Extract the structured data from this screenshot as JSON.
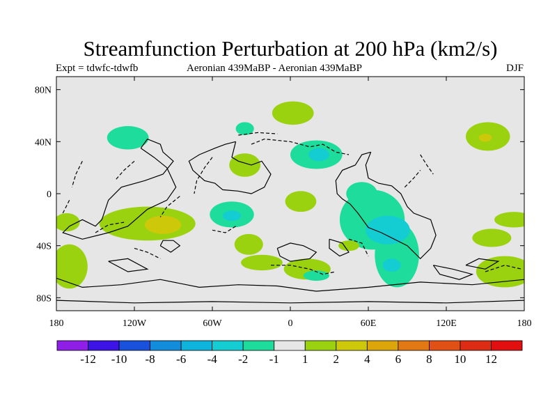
{
  "title": "Streamfunction Perturbation at 200 hPa (km2/s)",
  "subtitle_left": "Expt = tdwfc-tdwfb",
  "subtitle_center": "Aeronian 439MaBP - Aeronian 439MaBP",
  "subtitle_right": "DJF",
  "map": {
    "projection": "cylindrical-equidistant",
    "lon_range": [
      -180,
      180
    ],
    "lat_range": [
      -90,
      90
    ],
    "background_color": "#e6e6e6",
    "x_ticks": [
      {
        "lon": -180,
        "label": "180"
      },
      {
        "lon": -120,
        "label": "120W"
      },
      {
        "lon": -60,
        "label": "60W"
      },
      {
        "lon": 0,
        "label": "0"
      },
      {
        "lon": 60,
        "label": "60E"
      },
      {
        "lon": 120,
        "label": "120E"
      },
      {
        "lon": 180,
        "label": "180"
      }
    ],
    "y_ticks": [
      {
        "lat": 80,
        "label": "80N"
      },
      {
        "lat": 40,
        "label": "40N"
      },
      {
        "lat": 0,
        "label": "0"
      },
      {
        "lat": -40,
        "label": "40S"
      },
      {
        "lat": -80,
        "label": "80S"
      }
    ]
  },
  "colorbar": {
    "colors": [
      "#8f1ee6",
      "#3c14e6",
      "#1950dc",
      "#148cdc",
      "#0fb4dc",
      "#14cdd2",
      "#1edc9b",
      "#e6e6e6",
      "#9bd20f",
      "#cdc80a",
      "#dca50a",
      "#e17814",
      "#e15014",
      "#dc2d14",
      "#e10f0f"
    ],
    "labels": [
      "-12",
      "-10",
      "-8",
      "-6",
      "-4",
      "-2",
      "-1",
      "1",
      "2",
      "4",
      "6",
      "8",
      "10",
      "12"
    ]
  },
  "contours": [
    {
      "level": "2",
      "color": "#9bd20f",
      "lon": 2,
      "lat": 62,
      "rlon": 16,
      "rlat": 9
    },
    {
      "level": "-1",
      "color": "#1edc9b",
      "lon": -125,
      "lat": 43,
      "rlon": 16,
      "rlat": 9
    },
    {
      "level": "-1",
      "color": "#1edc9b",
      "lon": -35,
      "lat": 50,
      "rlon": 7,
      "rlat": 5
    },
    {
      "level": "-1",
      "color": "#1edc9b",
      "lon": 20,
      "lat": 30,
      "rlon": 20,
      "rlat": 11
    },
    {
      "level": "-2",
      "color": "#14cdd2",
      "lon": 22,
      "lat": 30,
      "rlon": 8,
      "rlat": 5
    },
    {
      "level": "2",
      "color": "#9bd20f",
      "lon": -35,
      "lat": 22,
      "rlon": 12,
      "rlat": 9
    },
    {
      "level": "2",
      "color": "#9bd20f",
      "lon": 152,
      "lat": 44,
      "rlon": 17,
      "rlat": 11
    },
    {
      "level": "4",
      "color": "#cdc80a",
      "lon": 150,
      "lat": 43,
      "rlon": 5,
      "rlat": 3
    },
    {
      "level": "2",
      "color": "#9bd20f",
      "lon": 8,
      "lat": -6,
      "rlon": 12,
      "rlat": 8
    },
    {
      "level": "-1",
      "color": "#1edc9b",
      "lon": -45,
      "lat": -16,
      "rlon": 17,
      "rlat": 10
    },
    {
      "level": "-2",
      "color": "#14cdd2",
      "lon": -45,
      "lat": -17,
      "rlon": 7,
      "rlat": 4
    },
    {
      "level": "2",
      "color": "#9bd20f",
      "lon": -110,
      "lat": -23,
      "rlon": 37,
      "rlat": 13
    },
    {
      "level": "4",
      "color": "#cdc80a",
      "lon": -98,
      "lat": -24,
      "rlon": 14,
      "rlat": 7
    },
    {
      "level": "2",
      "color": "#9bd20f",
      "lon": -172,
      "lat": -22,
      "rlon": 10,
      "rlat": 7
    },
    {
      "level": "2",
      "color": "#9bd20f",
      "lon": -170,
      "lat": -56,
      "rlon": 14,
      "rlat": 17
    },
    {
      "level": "2",
      "color": "#9bd20f",
      "lon": -32,
      "lat": -39,
      "rlon": 11,
      "rlat": 8
    },
    {
      "level": "2",
      "color": "#9bd20f",
      "lon": -22,
      "lat": -53,
      "rlon": 16,
      "rlat": 6
    },
    {
      "level": "2",
      "color": "#9bd20f",
      "lon": 13,
      "lat": -58,
      "rlon": 18,
      "rlat": 8
    },
    {
      "level": "-1",
      "color": "#1edc9b",
      "lon": 20,
      "lat": -63,
      "rlon": 10,
      "rlat": 4
    },
    {
      "level": "-1",
      "color": "#1edc9b",
      "lon": 63,
      "lat": -20,
      "rlon": 25,
      "rlat": 23
    },
    {
      "level": "-1",
      "color": "#1edc9b",
      "lon": 82,
      "lat": -47,
      "rlon": 17,
      "rlat": 25
    },
    {
      "level": "-1",
      "color": "#1edc9b",
      "lon": 55,
      "lat": 0,
      "rlon": 12,
      "rlat": 9
    },
    {
      "level": "-2",
      "color": "#14cdd2",
      "lon": 75,
      "lat": -28,
      "rlon": 17,
      "rlat": 11
    },
    {
      "level": "-2",
      "color": "#14cdd2",
      "lon": 78,
      "lat": -55,
      "rlon": 7,
      "rlat": 5
    },
    {
      "level": "2",
      "color": "#9bd20f",
      "lon": 155,
      "lat": -34,
      "rlon": 15,
      "rlat": 7
    },
    {
      "level": "2",
      "color": "#9bd20f",
      "lon": 172,
      "lat": -20,
      "rlon": 15,
      "rlat": 6
    },
    {
      "level": "2",
      "color": "#9bd20f",
      "lon": 165,
      "lat": -60,
      "rlon": 22,
      "rlat": 12
    },
    {
      "level": "2",
      "color": "#9bd20f",
      "lon": 45,
      "lat": -40,
      "rlon": 8,
      "rlat": 4
    }
  ],
  "coastlines": [
    {
      "style": "solid",
      "points": [
        [
          -42,
          40
        ],
        [
          -45,
          28
        ],
        [
          -40,
          25
        ],
        [
          -30,
          22
        ],
        [
          -22,
          25
        ],
        [
          -15,
          15
        ],
        [
          -20,
          5
        ],
        [
          -30,
          0
        ],
        [
          -40,
          2
        ],
        [
          -52,
          3
        ],
        [
          -58,
          8
        ],
        [
          -66,
          10
        ],
        [
          -75,
          18
        ],
        [
          -78,
          25
        ],
        [
          -70,
          30
        ],
        [
          -58,
          35
        ],
        [
          -50,
          38
        ],
        [
          -42,
          40
        ]
      ]
    },
    {
      "style": "solid",
      "points": [
        [
          -115,
          35
        ],
        [
          -110,
          42
        ],
        [
          -100,
          38
        ],
        [
          -98,
          32
        ],
        [
          -90,
          25
        ],
        [
          -98,
          15
        ],
        [
          -112,
          10
        ],
        [
          -130,
          5
        ],
        [
          -140,
          -5
        ],
        [
          -145,
          -20
        ],
        [
          -150,
          -25
        ],
        [
          -160,
          -20
        ],
        [
          -170,
          -25
        ],
        [
          -175,
          -30
        ],
        [
          -160,
          -35
        ],
        [
          -140,
          -30
        ],
        [
          -125,
          -25
        ],
        [
          -110,
          -12
        ],
        [
          -95,
          -5
        ],
        [
          -88,
          5
        ],
        [
          -95,
          20
        ],
        [
          -105,
          28
        ],
        [
          -115,
          35
        ]
      ]
    },
    {
      "style": "solid",
      "points": [
        [
          62,
          32
        ],
        [
          58,
          22
        ],
        [
          60,
          12
        ],
        [
          68,
          8
        ],
        [
          78,
          6
        ],
        [
          85,
          0
        ],
        [
          90,
          -10
        ],
        [
          95,
          -15
        ],
        [
          108,
          -20
        ],
        [
          112,
          -32
        ],
        [
          108,
          -42
        ],
        [
          100,
          -50
        ],
        [
          90,
          -40
        ],
        [
          80,
          -35
        ],
        [
          70,
          -30
        ],
        [
          60,
          -26
        ],
        [
          52,
          -15
        ],
        [
          46,
          -8
        ],
        [
          40,
          -4
        ],
        [
          36,
          0
        ],
        [
          35,
          10
        ],
        [
          40,
          18
        ],
        [
          50,
          22
        ],
        [
          55,
          30
        ],
        [
          62,
          32
        ]
      ]
    },
    {
      "style": "solid",
      "points": [
        [
          -180,
          -65
        ],
        [
          -160,
          -72
        ],
        [
          -130,
          -70
        ],
        [
          -100,
          -66
        ],
        [
          -70,
          -72
        ],
        [
          -40,
          -70
        ],
        [
          -10,
          -71
        ],
        [
          20,
          -75
        ],
        [
          60,
          -72
        ],
        [
          100,
          -68
        ],
        [
          140,
          -70
        ],
        [
          180,
          -66
        ]
      ]
    },
    {
      "style": "solid",
      "points": [
        [
          -180,
          -82
        ],
        [
          -120,
          -84
        ],
        [
          -60,
          -83
        ],
        [
          0,
          -84
        ],
        [
          60,
          -83
        ],
        [
          120,
          -84
        ],
        [
          180,
          -82
        ]
      ]
    },
    {
      "style": "solid",
      "points": [
        [
          -100,
          -40
        ],
        [
          -92,
          -45
        ],
        [
          -85,
          -40
        ],
        [
          -90,
          -36
        ],
        [
          -98,
          -36
        ],
        [
          -100,
          -40
        ]
      ]
    },
    {
      "style": "solid",
      "points": [
        [
          -10,
          -42
        ],
        [
          0,
          -38
        ],
        [
          10,
          -40
        ],
        [
          20,
          -45
        ],
        [
          15,
          -50
        ],
        [
          0,
          -52
        ],
        [
          -8,
          -48
        ],
        [
          -10,
          -42
        ]
      ]
    },
    {
      "style": "solid",
      "points": [
        [
          30,
          -35
        ],
        [
          40,
          -38
        ],
        [
          45,
          -45
        ],
        [
          38,
          -48
        ],
        [
          30,
          -42
        ],
        [
          30,
          -35
        ]
      ]
    },
    {
      "style": "solid",
      "points": [
        [
          -140,
          -52
        ],
        [
          -125,
          -60
        ],
        [
          -110,
          -58
        ],
        [
          -125,
          -50
        ],
        [
          -140,
          -52
        ]
      ]
    },
    {
      "style": "solid",
      "points": [
        [
          110,
          -55
        ],
        [
          125,
          -58
        ],
        [
          140,
          -62
        ],
        [
          130,
          -66
        ],
        [
          115,
          -62
        ],
        [
          110,
          -55
        ]
      ]
    },
    {
      "style": "solid",
      "points": [
        [
          135,
          -55
        ],
        [
          145,
          -50
        ],
        [
          160,
          -52
        ],
        [
          150,
          -58
        ],
        [
          135,
          -55
        ]
      ]
    },
    {
      "style": "dashed",
      "points": [
        [
          -40,
          45
        ],
        [
          -25,
          47
        ],
        [
          -10,
          46
        ]
      ]
    },
    {
      "style": "dashed",
      "points": [
        [
          -30,
          38
        ],
        [
          -20,
          42
        ],
        [
          0,
          40
        ],
        [
          15,
          36
        ],
        [
          25,
          38
        ],
        [
          35,
          32
        ],
        [
          45,
          30
        ]
      ]
    },
    {
      "style": "dashed",
      "points": [
        [
          -60,
          28
        ],
        [
          -66,
          20
        ],
        [
          -72,
          10
        ],
        [
          -74,
          0
        ]
      ]
    },
    {
      "style": "dashed",
      "points": [
        [
          -85,
          -2
        ],
        [
          -95,
          -10
        ],
        [
          -100,
          -18
        ]
      ]
    },
    {
      "style": "dashed",
      "points": [
        [
          -120,
          25
        ],
        [
          -128,
          18
        ],
        [
          -135,
          10
        ]
      ]
    },
    {
      "style": "dashed",
      "points": [
        [
          -160,
          25
        ],
        [
          -165,
          15
        ],
        [
          -168,
          5
        ]
      ]
    },
    {
      "style": "dashed",
      "points": [
        [
          -170,
          -5
        ],
        [
          -175,
          -15
        ]
      ]
    },
    {
      "style": "dashed",
      "points": [
        [
          -150,
          -30
        ],
        [
          -140,
          -24
        ],
        [
          -128,
          -22
        ]
      ]
    },
    {
      "style": "dashed",
      "points": [
        [
          -42,
          -25
        ],
        [
          -50,
          -30
        ],
        [
          -60,
          -28
        ]
      ]
    },
    {
      "style": "dashed",
      "points": [
        [
          -15,
          -55
        ],
        [
          0,
          -55
        ],
        [
          15,
          -58
        ],
        [
          25,
          -62
        ],
        [
          35,
          -60
        ]
      ]
    },
    {
      "style": "dashed",
      "points": [
        [
          45,
          -35
        ],
        [
          55,
          -38
        ],
        [
          60,
          -48
        ]
      ]
    },
    {
      "style": "dashed",
      "points": [
        [
          88,
          5
        ],
        [
          95,
          12
        ],
        [
          100,
          18
        ]
      ]
    },
    {
      "style": "dashed",
      "points": [
        [
          100,
          30
        ],
        [
          105,
          22
        ],
        [
          110,
          15
        ]
      ]
    },
    {
      "style": "dashed",
      "points": [
        [
          150,
          -60
        ],
        [
          165,
          -55
        ],
        [
          178,
          -58
        ]
      ]
    },
    {
      "style": "dashed",
      "points": [
        [
          -120,
          -42
        ],
        [
          -110,
          -45
        ],
        [
          -100,
          -50
        ]
      ]
    }
  ]
}
